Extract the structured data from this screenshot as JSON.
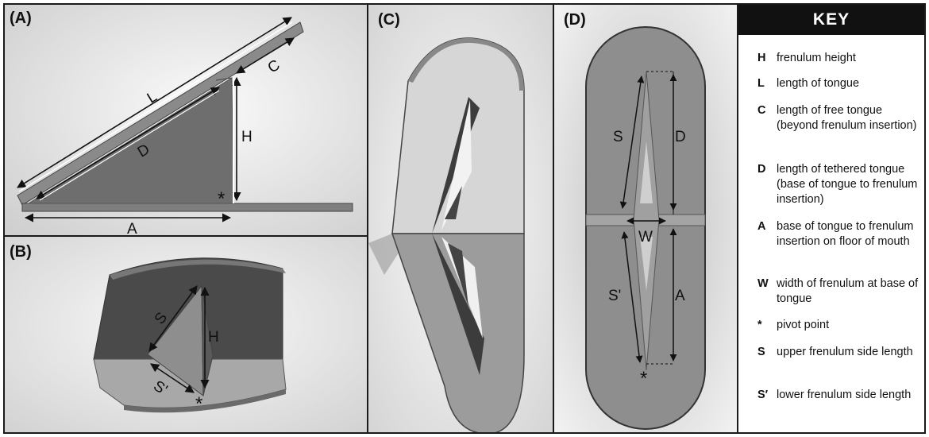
{
  "panels": {
    "a": {
      "label": "(A)",
      "dims": {
        "L": "L",
        "C": "C",
        "D": "D",
        "H": "H",
        "A": "A",
        "pivot": "*"
      }
    },
    "b": {
      "label": "(B)",
      "dims": {
        "S": "S",
        "H": "H",
        "S_prime": "S'",
        "pivot": "*"
      }
    },
    "c": {
      "label": "(C)"
    },
    "d": {
      "label": "(D)",
      "dims": {
        "S": "S",
        "D": "D",
        "W": "W",
        "S_prime": "S'",
        "A": "A",
        "pivot": "*"
      }
    }
  },
  "key": {
    "title": "KEY",
    "items": [
      {
        "symbol": "H",
        "definition": "frenulum height"
      },
      {
        "symbol": "L",
        "definition": "length of tongue"
      },
      {
        "symbol": "C",
        "definition": "length of free tongue (beyond frenulum insertion)"
      },
      {
        "symbol": "D",
        "definition": "length of tethered tongue (base of tongue to frenulum insertion)"
      },
      {
        "symbol": "A",
        "definition": "base of tongue to frenulum insertion on floor of mouth"
      },
      {
        "symbol": "W",
        "definition": "width of frenulum at base of tongue"
      },
      {
        "symbol": "*",
        "definition": "pivot point"
      },
      {
        "symbol": "S",
        "definition": "upper frenulum side length"
      },
      {
        "symbol": "S′",
        "definition": "lower frenulum side length"
      }
    ]
  }
}
